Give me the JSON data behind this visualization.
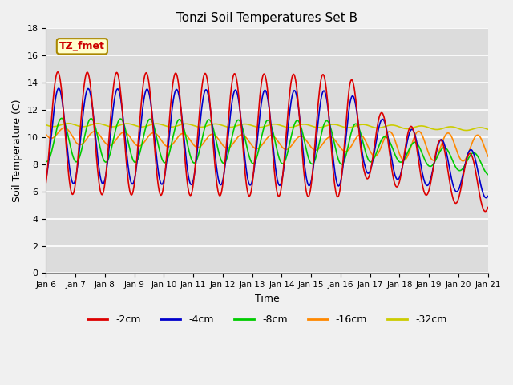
{
  "title": "Tonzi Soil Temperatures Set B",
  "xlabel": "Time",
  "ylabel": "Soil Temperature (C)",
  "ylim": [
    0,
    18
  ],
  "yticks": [
    0,
    2,
    4,
    6,
    8,
    10,
    12,
    14,
    16,
    18
  ],
  "x_tick_labels": [
    "Jan 6",
    "Jan 7",
    "Jan 8",
    "Jan 9",
    "Jan 10",
    "Jan 11",
    "Jan 12",
    "Jan 13",
    "Jan 14",
    "Jan 15",
    "Jan 16",
    "Jan 17",
    "Jan 18",
    "Jan 19",
    "Jan 20",
    "Jan 21"
  ],
  "annotation_text": "TZ_fmet",
  "annotation_color": "#cc0000",
  "annotation_bg": "#ffffcc",
  "annotation_border": "#aa8800",
  "series_colors": [
    "#dd0000",
    "#0000cc",
    "#00cc00",
    "#ff8800",
    "#cccc00"
  ],
  "series_labels": [
    "-2cm",
    "-4cm",
    "-8cm",
    "-16cm",
    "-32cm"
  ],
  "axes_bg": "#dcdcdc",
  "grid_color": "#ffffff",
  "linewidth": 1.2
}
